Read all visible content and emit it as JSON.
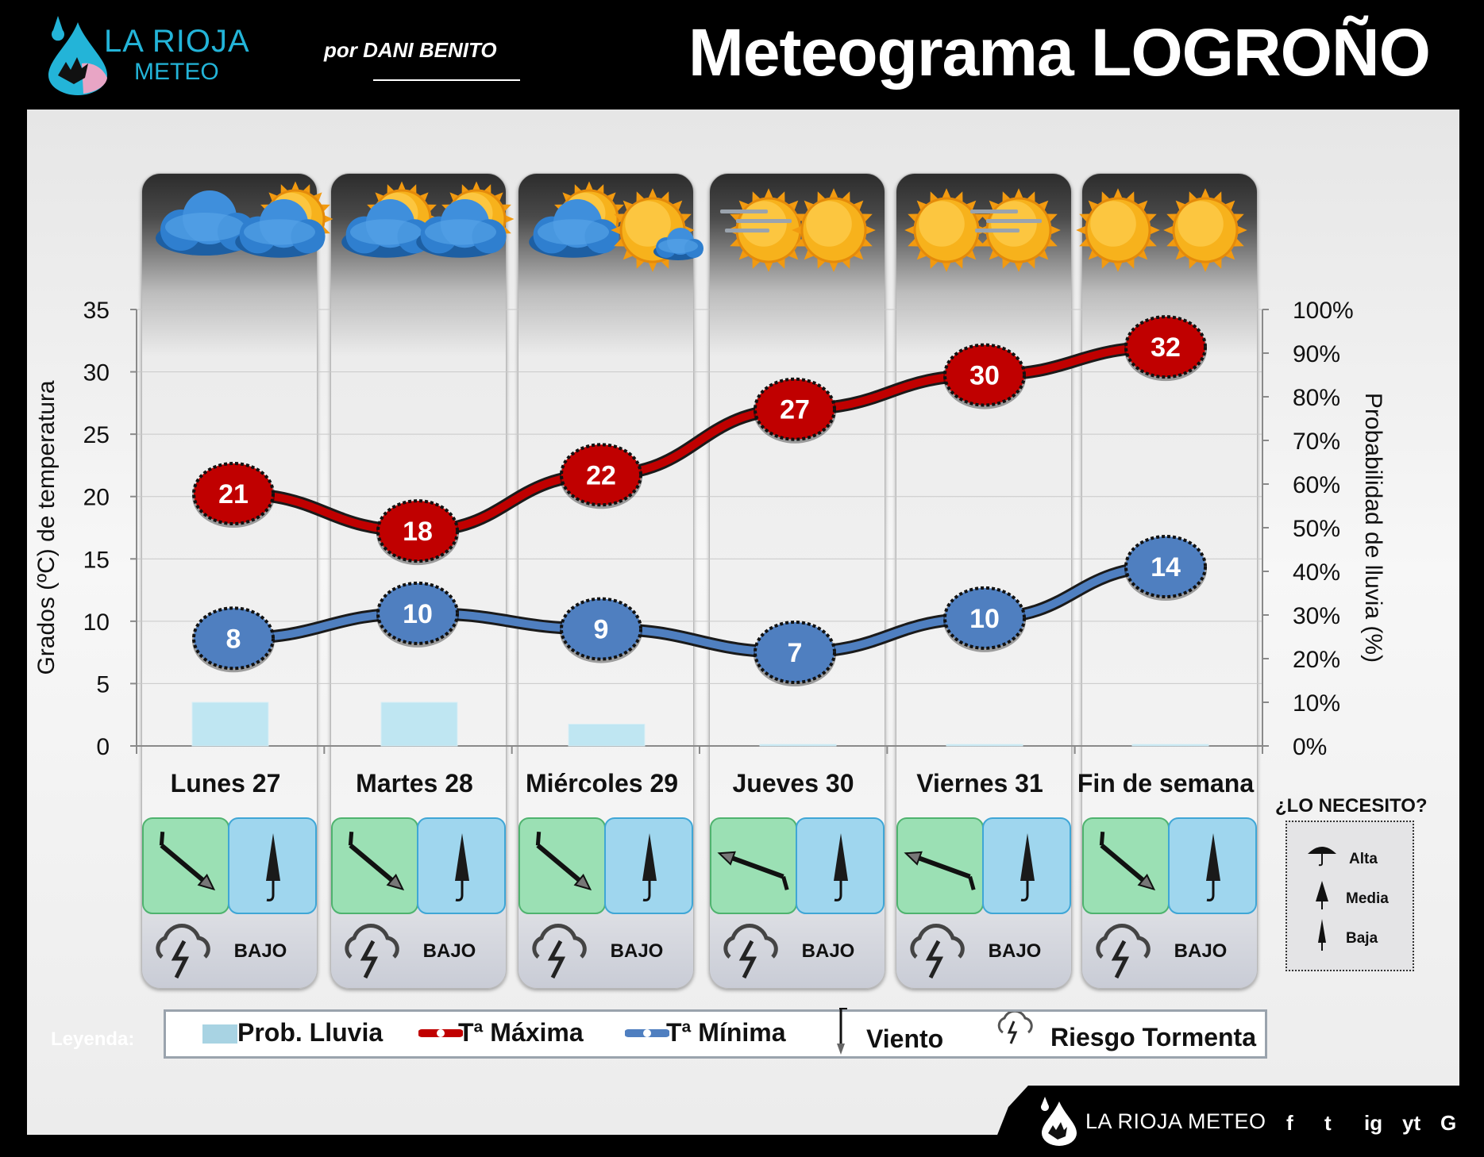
{
  "header": {
    "logo_line1": "LA RIOJA",
    "logo_line2": "METEO",
    "byline": "por DANI BENITO",
    "title": "Meteograma LOGROÑO"
  },
  "chart_data": {
    "type": "line",
    "categories": [
      "Lunes 27",
      "Martes 28",
      "Miércoles 29",
      "Jueves 30",
      "Viernes 31",
      "Fin de semana"
    ],
    "series": [
      {
        "name": "Tª Máxima",
        "values": [
          21,
          18,
          22,
          27,
          30,
          32
        ],
        "color": "#c00000"
      },
      {
        "name": "Tª Mínima",
        "values": [
          8,
          10,
          9,
          7,
          10,
          14
        ],
        "color": "#4f7fc0"
      },
      {
        "name": "Prob. Lluvia",
        "type": "bar",
        "axis": "right",
        "values": [
          10,
          10,
          5,
          0,
          0,
          0
        ],
        "color": "#bfe6f2"
      }
    ],
    "ylabel": "Grados (ºC) de temperatura",
    "y_ticks": [
      "0",
      "5",
      "10",
      "15",
      "20",
      "25",
      "30",
      "35"
    ],
    "ylim": [
      0,
      35
    ],
    "y2label": "Probabilidad de lluvia (%)",
    "y2_ticks": [
      "0%",
      "10%",
      "20%",
      "30%",
      "40%",
      "50%",
      "60%",
      "70%",
      "80%",
      "90%",
      "100%"
    ],
    "y2lim": [
      0,
      100
    ],
    "grid": true
  },
  "days": [
    {
      "wind_dir": "SE",
      "umbrella": "Baja",
      "storm": "BAJO",
      "sky": [
        "cloud",
        "sun-cloud"
      ]
    },
    {
      "wind_dir": "SE",
      "umbrella": "Baja",
      "storm": "BAJO",
      "sky": [
        "sun-cloud",
        "sun-cloud"
      ]
    },
    {
      "wind_dir": "SE",
      "umbrella": "Baja",
      "storm": "BAJO",
      "sky": [
        "sun-cloud",
        "sun-small-cloud"
      ]
    },
    {
      "wind_dir": "W",
      "umbrella": "Baja",
      "storm": "BAJO",
      "sky": [
        "sun-haze",
        "sun"
      ]
    },
    {
      "wind_dir": "W",
      "umbrella": "Baja",
      "storm": "BAJO",
      "sky": [
        "sun",
        "sun-haze"
      ]
    },
    {
      "wind_dir": "SE",
      "umbrella": "Baja",
      "storm": "BAJO",
      "sky": [
        "sun",
        "sun"
      ]
    }
  ],
  "need": {
    "title": "¿LO NECESITO?",
    "items": [
      "Alta",
      "Media",
      "Baja"
    ]
  },
  "legend": {
    "title": "Leyenda:",
    "rain": "Prob. Lluvia",
    "tmax": "Tª Máxima",
    "tmin": "Tª Mínima",
    "wind": "Viento",
    "storm": "Riesgo Tormenta"
  },
  "footer": {
    "brand": "LA RIOJA METEO",
    "social": [
      "f",
      "t",
      "ig",
      "yt",
      "G"
    ]
  }
}
